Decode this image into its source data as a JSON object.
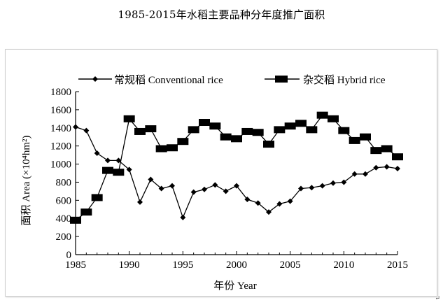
{
  "chart_data": {
    "type": "line",
    "title": "1985-2015年水稻主要品种分年度推广面积",
    "xlabel": "年份 Year",
    "ylabel": "面积 Area (×10⁴hm²)",
    "ylim": [
      0,
      1800
    ],
    "xlim": [
      1985,
      2015
    ],
    "y_ticks": [
      0,
      200,
      400,
      600,
      800,
      1000,
      1200,
      1400,
      1600,
      1800
    ],
    "x_ticks": [
      1985,
      1990,
      1995,
      2000,
      2005,
      2010,
      2015
    ],
    "x": [
      1985,
      1986,
      1987,
      1988,
      1989,
      1990,
      1991,
      1992,
      1993,
      1994,
      1995,
      1996,
      1997,
      1998,
      1999,
      2000,
      2001,
      2002,
      2003,
      2004,
      2005,
      2006,
      2007,
      2008,
      2009,
      2010,
      2011,
      2012,
      2013,
      2014,
      2015
    ],
    "legend_position": "top",
    "grid": false,
    "series": [
      {
        "name": "常规稻 Conventional rice",
        "marker": "diamond",
        "values": [
          1410,
          1370,
          1120,
          1040,
          1040,
          940,
          580,
          830,
          730,
          760,
          410,
          690,
          720,
          770,
          700,
          760,
          610,
          570,
          470,
          560,
          590,
          730,
          740,
          760,
          790,
          800,
          890,
          890,
          960,
          970,
          950
        ]
      },
      {
        "name": "杂交稻 Hybrid rice",
        "marker": "square",
        "values": [
          380,
          470,
          630,
          930,
          910,
          1500,
          1360,
          1390,
          1170,
          1180,
          1250,
          1380,
          1460,
          1420,
          1300,
          1280,
          1360,
          1350,
          1220,
          1380,
          1420,
          1450,
          1380,
          1540,
          1500,
          1370,
          1260,
          1300,
          1150,
          1170,
          1080
        ]
      }
    ]
  },
  "corner_mark": "↵"
}
